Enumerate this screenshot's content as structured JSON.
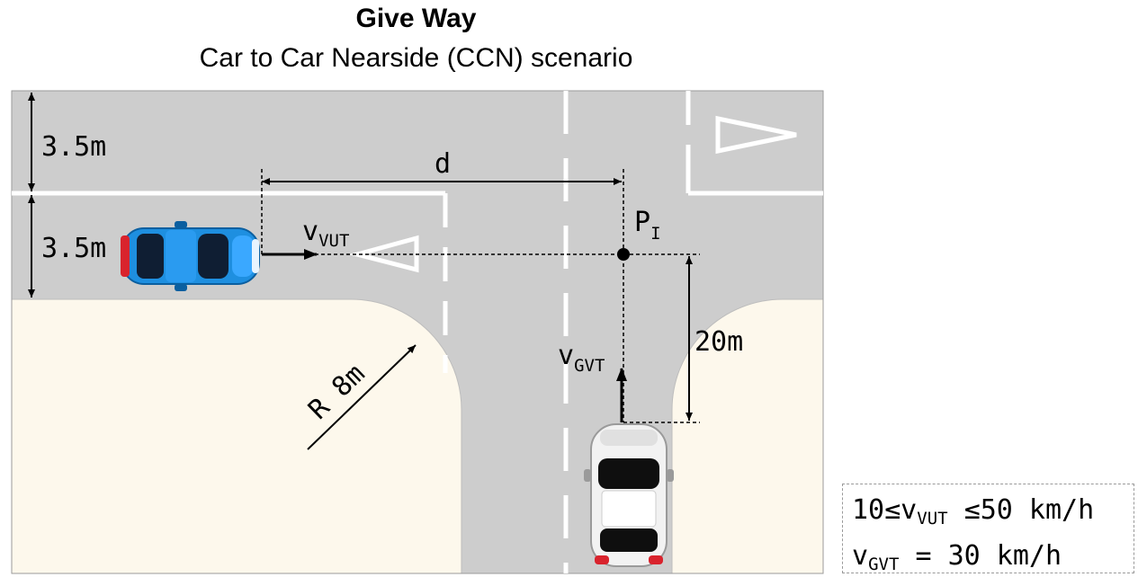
{
  "title": "Give Way",
  "subtitle": "Car to Car Nearside (CCN) scenario",
  "dimensions": {
    "lane_width_top": "3.5m",
    "lane_width_bottom": "3.5m",
    "distance_label": "d",
    "corner_radius": "R 8m",
    "gvt_distance": "20m"
  },
  "labels": {
    "impact_point_main": "P",
    "impact_point_sub": "I",
    "vut_velocity_main": "v",
    "vut_velocity_sub": "VUT",
    "gvt_velocity_main": "v",
    "gvt_velocity_sub": "GVT"
  },
  "legend": {
    "line1_prefix": "10≤v",
    "line1_sub": "VUT",
    "line1_suffix": " ≤50 km/h",
    "line2_prefix": "v",
    "line2_sub": "GVT",
    "line2_suffix": " = 30 km/h"
  },
  "colors": {
    "road": "#cdcdcd",
    "sidewalk": "#fdf8ec",
    "marking": "#ffffff",
    "vut_car": "#1e8fe0",
    "gvt_car": "#f2f2f2"
  }
}
